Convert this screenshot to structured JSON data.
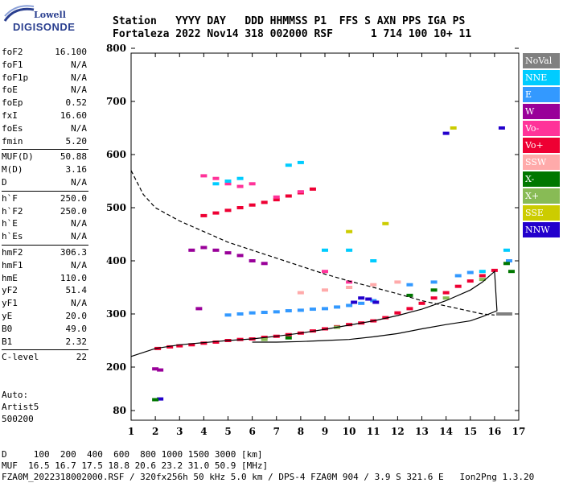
{
  "logo": {
    "line1": "Lowell",
    "line2": "DIGISONDE"
  },
  "header": {
    "line1": "Station   YYYY DAY   DDD HHMMSS P1  FFS S AXN PPS IGA PS",
    "line2": "Fortaleza 2022 Nov14 318 002000 RSF      1 714 100 10+ 11"
  },
  "params": [
    {
      "label": "foF2",
      "value": "16.100"
    },
    {
      "label": "foF1",
      "value": "N/A"
    },
    {
      "label": "foF1p",
      "value": "N/A"
    },
    {
      "label": "foE",
      "value": "N/A"
    },
    {
      "label": "foEp",
      "value": "0.52"
    },
    {
      "label": "fxI",
      "value": "16.60"
    },
    {
      "label": "foEs",
      "value": "N/A"
    },
    {
      "label": "fmin",
      "value": "5.20"
    },
    {
      "label": "MUF(D)",
      "value": "50.88"
    },
    {
      "label": "M(D)",
      "value": "3.16"
    },
    {
      "label": "D",
      "value": "N/A"
    },
    {
      "label": "h`F",
      "value": "250.0"
    },
    {
      "label": "h`F2",
      "value": "250.0"
    },
    {
      "label": "h`E",
      "value": "N/A"
    },
    {
      "label": "h`Es",
      "value": "N/A"
    },
    {
      "label": "hmF2",
      "value": "306.3"
    },
    {
      "label": "hmF1",
      "value": "N/A"
    },
    {
      "label": "hmE",
      "value": "110.0"
    },
    {
      "label": "yF2",
      "value": "51.4"
    },
    {
      "label": "yF1",
      "value": "N/A"
    },
    {
      "label": "yE",
      "value": "20.0"
    },
    {
      "label": "B0",
      "value": "49.0"
    },
    {
      "label": "B1",
      "value": "2.32"
    },
    {
      "label": "C-level",
      "value": "22"
    }
  ],
  "auto": [
    "Auto:",
    "Artist5",
    "500200"
  ],
  "legend": [
    {
      "label": "NoVal",
      "color": "#808080"
    },
    {
      "label": "NNE",
      "color": "#00ccff"
    },
    {
      "label": "E",
      "color": "#3399ff"
    },
    {
      "label": "W",
      "color": "#990099"
    },
    {
      "label": "Vo-",
      "color": "#ff3399"
    },
    {
      "label": "Vo+",
      "color": "#ee0033"
    },
    {
      "label": "SSW",
      "color": "#ffaaaa"
    },
    {
      "label": "X-",
      "color": "#007700"
    },
    {
      "label": "X+",
      "color": "#88bb55"
    },
    {
      "label": "SSE",
      "color": "#cccc00"
    },
    {
      "label": "NNW",
      "color": "#2200cc"
    }
  ],
  "footer": {
    "line1": "D     100  200  400  600  800 1000 1500 3000 [km]",
    "line2": "MUF  16.5 16.7 17.5 18.8 20.6 23.2 31.0 50.9 [MHz]",
    "line3": "FZA0M_2022318002000.RSF / 320fx256h 50 kHz 5.0 km / DPS-4 FZA0M 904 / 3.9 S 321.6 E   Ion2Png 1.3.20"
  },
  "chart_data": {
    "type": "scatter",
    "xlim": [
      1,
      17
    ],
    "ylim": [
      80,
      900
    ],
    "xticks": [
      1,
      2,
      3,
      4,
      5,
      6,
      7,
      8,
      9,
      10,
      11,
      12,
      13,
      14,
      15,
      16,
      17
    ],
    "yticks": [
      80,
      200,
      300,
      400,
      500,
      600,
      700,
      800,
      900
    ],
    "series": [
      {
        "name": "Vo+",
        "color": "#ee0033",
        "points": [
          [
            2.1,
            235
          ],
          [
            2.6,
            238
          ],
          [
            3.0,
            240
          ],
          [
            3.5,
            242
          ],
          [
            4.0,
            245
          ],
          [
            4.5,
            247
          ],
          [
            5.0,
            250
          ],
          [
            5.5,
            252
          ],
          [
            6.0,
            253
          ],
          [
            6.5,
            256
          ],
          [
            7.0,
            258
          ],
          [
            7.5,
            261
          ],
          [
            8.0,
            264
          ],
          [
            8.5,
            268
          ],
          [
            9.0,
            272
          ],
          [
            9.5,
            276
          ],
          [
            10.0,
            280
          ],
          [
            10.5,
            283
          ],
          [
            11.0,
            287
          ],
          [
            11.5,
            293
          ],
          [
            12.0,
            302
          ],
          [
            12.5,
            310
          ],
          [
            13.0,
            320
          ],
          [
            13.5,
            330
          ],
          [
            14.0,
            340
          ],
          [
            14.5,
            352
          ],
          [
            15.0,
            362
          ],
          [
            15.5,
            372
          ],
          [
            16.0,
            382
          ],
          [
            4.0,
            485
          ],
          [
            4.5,
            490
          ],
          [
            5.0,
            495
          ],
          [
            5.5,
            500
          ],
          [
            6.0,
            505
          ],
          [
            6.5,
            510
          ],
          [
            7.0,
            515
          ],
          [
            7.5,
            522
          ],
          [
            8.0,
            528
          ],
          [
            8.5,
            535
          ]
        ]
      },
      {
        "name": "E",
        "color": "#3399ff",
        "points": [
          [
            5.0,
            298
          ],
          [
            5.5,
            300
          ],
          [
            6.0,
            302
          ],
          [
            6.5,
            303
          ],
          [
            7.0,
            304
          ],
          [
            7.5,
            306
          ],
          [
            8.0,
            307
          ],
          [
            8.5,
            309
          ],
          [
            9.0,
            310
          ],
          [
            9.5,
            313
          ],
          [
            10.0,
            316
          ],
          [
            10.5,
            320
          ],
          [
            11.0,
            325
          ],
          [
            12.5,
            355
          ],
          [
            13.5,
            360
          ],
          [
            14.5,
            372
          ],
          [
            15.0,
            378
          ],
          [
            16.6,
            400
          ]
        ]
      },
      {
        "name": "NNW",
        "color": "#2200cc",
        "points": [
          [
            2.2,
            112
          ],
          [
            10.2,
            322
          ],
          [
            10.5,
            330
          ],
          [
            10.8,
            328
          ],
          [
            11.1,
            322
          ],
          [
            14.0,
            640
          ],
          [
            16.3,
            650
          ]
        ]
      },
      {
        "name": "W",
        "color": "#990099",
        "points": [
          [
            3.5,
            420
          ],
          [
            4.0,
            425
          ],
          [
            4.5,
            420
          ],
          [
            5.0,
            415
          ],
          [
            5.5,
            410
          ],
          [
            6.0,
            400
          ],
          [
            6.5,
            395
          ],
          [
            3.8,
            310
          ],
          [
            2.0,
            195
          ],
          [
            2.2,
            192
          ]
        ]
      },
      {
        "name": "Vo-",
        "color": "#ff3399",
        "points": [
          [
            4.0,
            560
          ],
          [
            4.5,
            555
          ],
          [
            5.0,
            545
          ],
          [
            5.5,
            540
          ],
          [
            6.0,
            545
          ],
          [
            7.0,
            520
          ],
          [
            8.0,
            530
          ],
          [
            9.0,
            380
          ],
          [
            10.0,
            360
          ]
        ]
      },
      {
        "name": "NNE",
        "color": "#00ccff",
        "points": [
          [
            4.5,
            545
          ],
          [
            5.0,
            550
          ],
          [
            5.5,
            555
          ],
          [
            7.5,
            580
          ],
          [
            8.0,
            585
          ],
          [
            9.0,
            420
          ],
          [
            10.0,
            420
          ],
          [
            11.0,
            400
          ],
          [
            15.5,
            380
          ],
          [
            16.5,
            420
          ]
        ]
      },
      {
        "name": "X-",
        "color": "#007700",
        "points": [
          [
            2.0,
            110
          ],
          [
            7.5,
            255
          ],
          [
            12.5,
            335
          ],
          [
            13.5,
            345
          ],
          [
            16.5,
            395
          ],
          [
            16.7,
            380
          ]
        ]
      },
      {
        "name": "X+",
        "color": "#88bb55",
        "points": [
          [
            6.5,
            252
          ],
          [
            9.5,
            275
          ],
          [
            14.0,
            330
          ],
          [
            15.5,
            365
          ]
        ]
      },
      {
        "name": "SSW",
        "color": "#ffaaaa",
        "points": [
          [
            8.0,
            340
          ],
          [
            9.0,
            345
          ],
          [
            10.0,
            350
          ],
          [
            11.0,
            355
          ],
          [
            12.0,
            360
          ]
        ]
      },
      {
        "name": "SSE",
        "color": "#cccc00",
        "points": [
          [
            10.0,
            455
          ],
          [
            14.3,
            650
          ],
          [
            11.5,
            470
          ]
        ]
      },
      {
        "name": "NoVal",
        "color": "#808080",
        "points": [
          [
            16.2,
            300
          ],
          [
            16.4,
            300
          ],
          [
            16.6,
            300
          ]
        ]
      }
    ],
    "curves": [
      {
        "style": "dashed",
        "x": [
          1.0,
          1.5,
          2.0,
          3.0,
          4.0,
          5.0,
          6.0,
          7.0,
          8.0,
          9.0,
          10.0,
          11.0,
          12.0,
          13.0,
          14.0,
          15.0,
          15.5,
          16.0
        ],
        "y": [
          570,
          525,
          500,
          475,
          455,
          435,
          420,
          405,
          390,
          375,
          362,
          350,
          338,
          325,
          315,
          305,
          300,
          298
        ]
      },
      {
        "style": "solid",
        "x": [
          1.0,
          2.0,
          3.0,
          4.0,
          5.0,
          6.0,
          7.0,
          8.0,
          9.0,
          10.0,
          11.0,
          12.0,
          13.0,
          14.0,
          15.0,
          15.5,
          16.0,
          16.1,
          15.5,
          15.0,
          14.0,
          13.0,
          12.0,
          11.0,
          10.0,
          9.0,
          8.0,
          7.0,
          6.0
        ],
        "y": [
          220,
          235,
          242,
          246,
          250,
          253,
          258,
          264,
          271,
          279,
          287,
          297,
          309,
          325,
          345,
          360,
          380,
          306,
          295,
          287,
          280,
          272,
          263,
          257,
          252,
          250,
          248,
          247,
          247
        ]
      }
    ]
  }
}
